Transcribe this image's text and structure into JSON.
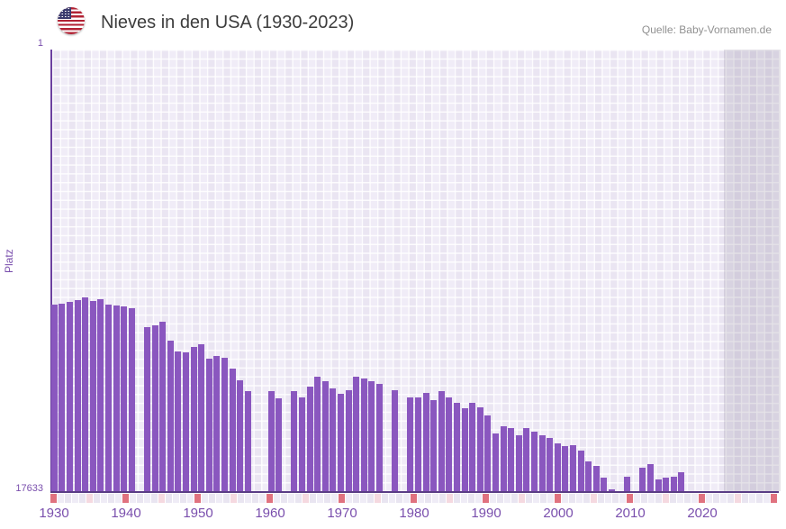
{
  "header": {
    "title": "Nieves in den USA (1930-2023)",
    "source": "Quelle: Baby-Vornamen.de",
    "flag_icon": "us-flag-icon"
  },
  "y_axis": {
    "label": "Platz",
    "top_tick": "1",
    "bottom_tick": "17633"
  },
  "x_axis": {
    "tick_labels": [
      "1930",
      "1940",
      "1950",
      "1960",
      "1970",
      "1980",
      "1990",
      "2000",
      "2010",
      "2020"
    ]
  },
  "chart_data": {
    "type": "bar",
    "title": "Nieves in den USA (1930-2023)",
    "ylabel": "Platz",
    "xlabel": "",
    "y_range": {
      "best_rank": 1,
      "worst_rank": 17633,
      "inverted_axis": true
    },
    "x_range": {
      "start": 1930,
      "end": 2023
    },
    "no_data_region_start": 2017,
    "grid": "checkered-lavender",
    "legend_position": "none",
    "points": [
      [
        1930,
        10180
      ],
      [
        1931,
        10140
      ],
      [
        1932,
        10070
      ],
      [
        1933,
        10000
      ],
      [
        1934,
        9890
      ],
      [
        1935,
        10040
      ],
      [
        1936,
        9970
      ],
      [
        1937,
        10180
      ],
      [
        1938,
        10220
      ],
      [
        1939,
        10260
      ],
      [
        1940,
        10330
      ],
      [
        1942,
        11080
      ],
      [
        1943,
        11010
      ],
      [
        1944,
        10870
      ],
      [
        1945,
        11620
      ],
      [
        1946,
        12050
      ],
      [
        1947,
        12090
      ],
      [
        1948,
        11870
      ],
      [
        1949,
        11770
      ],
      [
        1950,
        12340
      ],
      [
        1951,
        12230
      ],
      [
        1952,
        12310
      ],
      [
        1953,
        12740
      ],
      [
        1954,
        13200
      ],
      [
        1955,
        13640
      ],
      [
        1958,
        13640
      ],
      [
        1959,
        13920
      ],
      [
        1961,
        13640
      ],
      [
        1962,
        13890
      ],
      [
        1963,
        13460
      ],
      [
        1964,
        13060
      ],
      [
        1965,
        13240
      ],
      [
        1966,
        13530
      ],
      [
        1967,
        13740
      ],
      [
        1968,
        13600
      ],
      [
        1969,
        13060
      ],
      [
        1970,
        13130
      ],
      [
        1971,
        13240
      ],
      [
        1972,
        13350
      ],
      [
        1974,
        13600
      ],
      [
        1976,
        13890
      ],
      [
        1977,
        13880
      ],
      [
        1978,
        13710
      ],
      [
        1979,
        14010
      ],
      [
        1980,
        13640
      ],
      [
        1981,
        13880
      ],
      [
        1982,
        14100
      ],
      [
        1983,
        14330
      ],
      [
        1984,
        14120
      ],
      [
        1985,
        14280
      ],
      [
        1986,
        14600
      ],
      [
        1987,
        15330
      ],
      [
        1988,
        15030
      ],
      [
        1989,
        15110
      ],
      [
        1990,
        15410
      ],
      [
        1991,
        15110
      ],
      [
        1992,
        15270
      ],
      [
        1993,
        15390
      ],
      [
        1994,
        15510
      ],
      [
        1995,
        15710
      ],
      [
        1996,
        15830
      ],
      [
        1997,
        15800
      ],
      [
        1998,
        16010
      ],
      [
        1999,
        16440
      ],
      [
        2000,
        16610
      ],
      [
        2001,
        17090
      ],
      [
        2002,
        17570
      ],
      [
        2004,
        17070
      ],
      [
        2006,
        16710
      ],
      [
        2007,
        16550
      ],
      [
        2008,
        17160
      ],
      [
        2009,
        17090
      ],
      [
        2010,
        17070
      ],
      [
        2011,
        16890
      ]
    ],
    "colors": {
      "bar": "#8a57bf",
      "axis_line": "#5a3d85",
      "axis_text": "#7a4fad",
      "tick_decade": "#e0727f",
      "tick_half_decade": "#f5d9e0",
      "tick_cell_a": "#e9e5f1",
      "tick_cell_b": "#efecf6",
      "plot_cell_a": "#eae5f2",
      "plot_cell_b": "#f0ecf7",
      "nodata_overlay": "rgba(93,83,115,0.16)"
    }
  }
}
